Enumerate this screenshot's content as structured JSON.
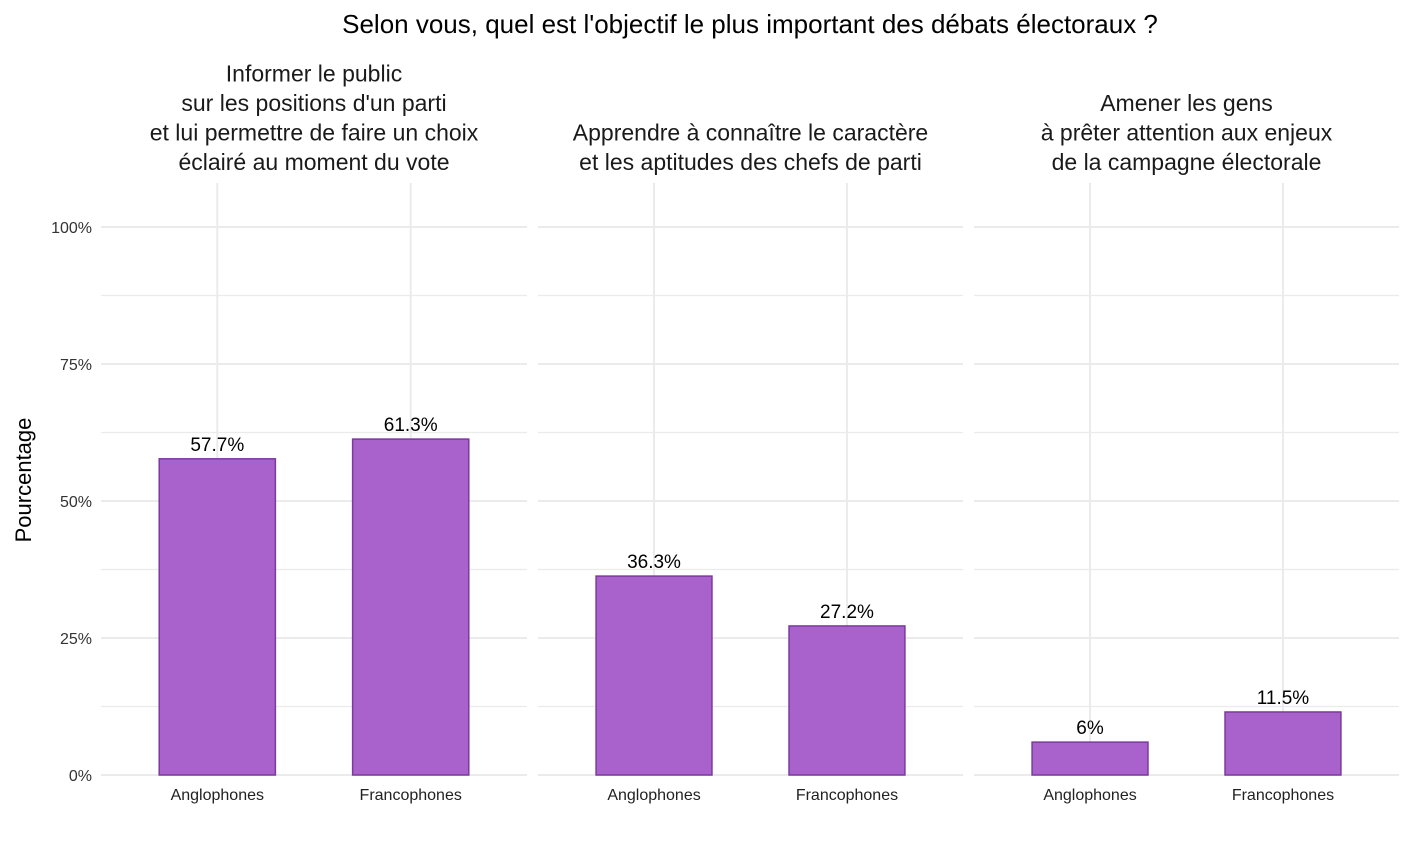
{
  "chart_data": {
    "type": "bar",
    "title": "Selon vous, quel est l'objectif le plus important des débats électoraux ?",
    "ylabel": "Pourcentage",
    "xlabel": "",
    "ylim": [
      0,
      100
    ],
    "yticks": [
      "0%",
      "25%",
      "50%",
      "75%",
      "100%"
    ],
    "grid": true,
    "categories": [
      "Anglophones",
      "Francophones"
    ],
    "colors": {
      "fill": "#a962cb",
      "stroke": "#7b3a9c",
      "grid": "#ebebeb"
    },
    "facets": [
      {
        "title": [
          "Informer le public",
          "sur les positions d'un parti",
          "et lui permettre de faire un choix",
          "éclairé au moment du vote"
        ],
        "values": [
          57.7,
          61.3
        ],
        "labels": [
          "57.7%",
          "61.3%"
        ]
      },
      {
        "title": [
          "Apprendre à connaître le caractère",
          "et les aptitudes des chefs de parti"
        ],
        "values": [
          36.3,
          27.2
        ],
        "labels": [
          "36.3%",
          "27.2%"
        ]
      },
      {
        "title": [
          "Amener les gens",
          "à prêter attention aux enjeux",
          "de la campagne électorale"
        ],
        "values": [
          6,
          11.5
        ],
        "labels": [
          "6%",
          "11.5%"
        ]
      }
    ]
  }
}
